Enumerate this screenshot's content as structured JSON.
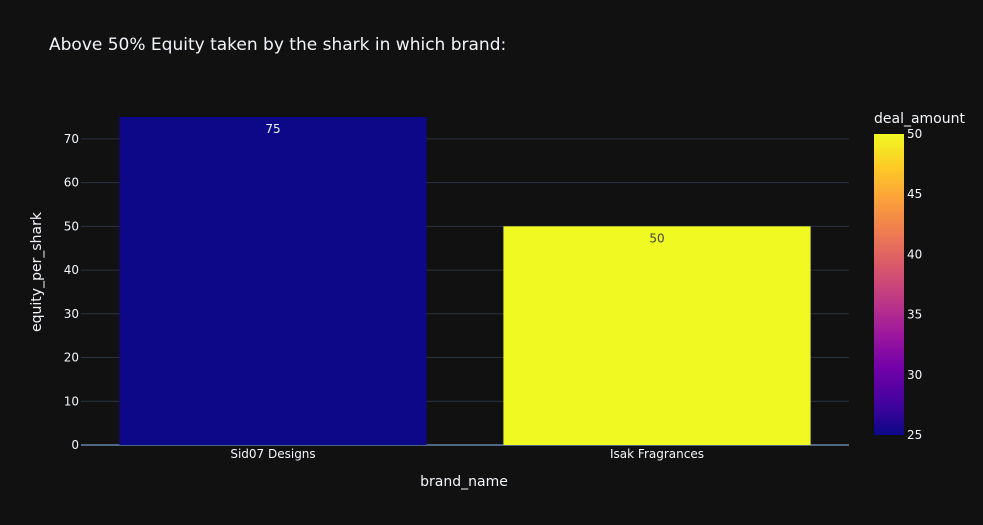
{
  "chart_data": {
    "type": "bar",
    "title": "Above 50% Equity taken by the shark in which brand:",
    "xlabel": "brand_name",
    "ylabel": "equity_per_shark",
    "categories": [
      "Sid07 Designs",
      "Isak Fragrances"
    ],
    "values": [
      75,
      50
    ],
    "color_values": [
      25,
      50
    ],
    "data_labels": [
      "75",
      "50"
    ],
    "ylim": [
      0,
      75
    ],
    "yticks": [
      0,
      10,
      20,
      30,
      40,
      50,
      60,
      70
    ],
    "grid": true,
    "colorbar": {
      "title": "deal_amount",
      "range": [
        25,
        50
      ],
      "ticks": [
        25,
        30,
        35,
        40,
        45,
        50
      ],
      "colorscale": [
        "#0d0887",
        "#46039f",
        "#7201a8",
        "#9c179e",
        "#bd3786",
        "#d8576b",
        "#ed7953",
        "#fb9f3a",
        "#fdca26",
        "#f0f921"
      ]
    },
    "background": "#111111",
    "text_color": "#f2f5fa"
  }
}
